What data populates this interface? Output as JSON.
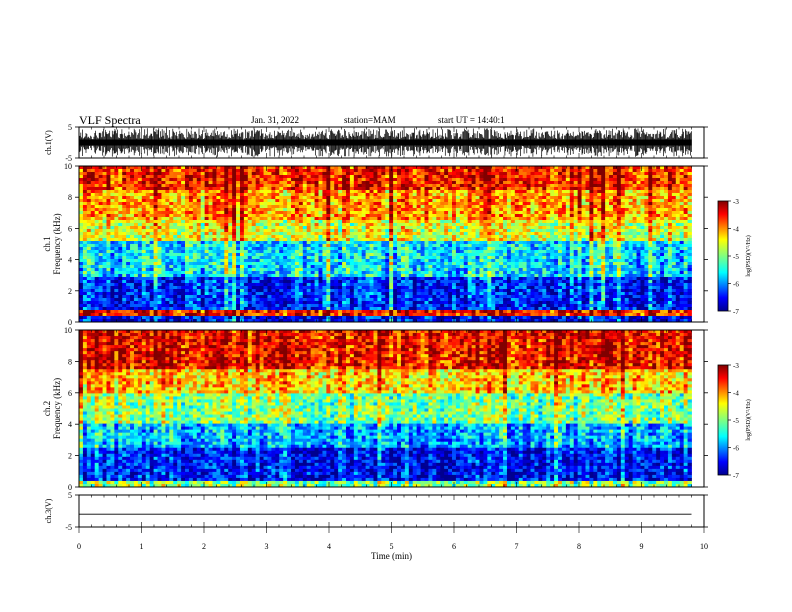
{
  "header": {
    "title": "VLF Spectra",
    "date": "Jan. 31, 2022",
    "station": "station=MAM",
    "start_time": "start UT =  14:40:1"
  },
  "chart_data": [
    {
      "type": "line",
      "panel": "ch1-waveform",
      "ylabel": "ch.1(V)",
      "ylim": [
        -5,
        5
      ],
      "yticks": [
        "-5",
        "5"
      ],
      "xlim": [
        0,
        10
      ],
      "description_values": "dense impulsive waveform (sferics) spanning most of the ±5 V range",
      "color": "#000000"
    },
    {
      "type": "heatmap",
      "panel": "ch1-spectrogram",
      "ylabel": "ch.1 Frequency (kHz)",
      "ylim": [
        0,
        10
      ],
      "yticks": [
        "0",
        "2",
        "4",
        "6",
        "8",
        "10"
      ],
      "xlim": [
        0,
        9.8
      ],
      "colorbar": {
        "label": "log(PSD)(V²/Hz)",
        "range": [
          -7,
          -3
        ],
        "ticks": [
          "-3",
          "-4",
          "-5",
          "-6",
          "-7"
        ]
      },
      "band_levels": [
        {
          "freq": [
            0,
            0.4
          ],
          "level": -6.6
        },
        {
          "freq": [
            0.4,
            0.8
          ],
          "level": -3.6
        },
        {
          "freq": [
            0.8,
            2.8
          ],
          "level": -6.4
        },
        {
          "freq": [
            2.8,
            5.2
          ],
          "level": -5.6
        },
        {
          "freq": [
            5.2,
            6.5
          ],
          "level": -4.6
        },
        {
          "freq": [
            6.5,
            8.5
          ],
          "level": -4.1
        },
        {
          "freq": [
            8.5,
            10
          ],
          "level": -3.6
        }
      ]
    },
    {
      "type": "heatmap",
      "panel": "ch2-spectrogram",
      "ylabel": "ch.2 Frequency (kHz)",
      "ylim": [
        0,
        10
      ],
      "yticks": [
        "0",
        "2",
        "4",
        "6",
        "8",
        "10"
      ],
      "xlim": [
        0,
        9.8
      ],
      "colorbar": {
        "label": "log(PSD)(V²/Hz)",
        "range": [
          -7,
          -3
        ],
        "ticks": [
          "-3",
          "-4",
          "-5",
          "-6",
          "-7"
        ]
      },
      "band_levels": [
        {
          "freq": [
            0,
            0.3
          ],
          "level": -5.0
        },
        {
          "freq": [
            0.3,
            2.5
          ],
          "level": -6.5
        },
        {
          "freq": [
            2.5,
            4.0
          ],
          "level": -5.8
        },
        {
          "freq": [
            4.0,
            6.0
          ],
          "level": -5.0
        },
        {
          "freq": [
            6.0,
            7.5
          ],
          "level": -4.3
        },
        {
          "freq": [
            7.5,
            10
          ],
          "level": -3.5
        }
      ]
    },
    {
      "type": "line",
      "panel": "ch3-waveform",
      "ylabel": "ch.3(V)",
      "ylim": [
        -5,
        5
      ],
      "yticks": [
        "-5",
        "5"
      ],
      "xlim": [
        0,
        10
      ],
      "values": {
        "x": [
          0,
          9.8
        ],
        "y": [
          -1,
          -1
        ]
      },
      "color": "#000000"
    }
  ],
  "xaxis": {
    "label": "Time (min)",
    "range": [
      0,
      10
    ],
    "ticks": [
      "0",
      "1",
      "2",
      "3",
      "4",
      "5",
      "6",
      "7",
      "8",
      "9",
      "10"
    ]
  },
  "colors": {
    "jet": [
      "#00008f",
      "#0000ff",
      "#0080ff",
      "#00ffff",
      "#80ff80",
      "#ffff00",
      "#ff8000",
      "#ff0000",
      "#800000"
    ]
  }
}
